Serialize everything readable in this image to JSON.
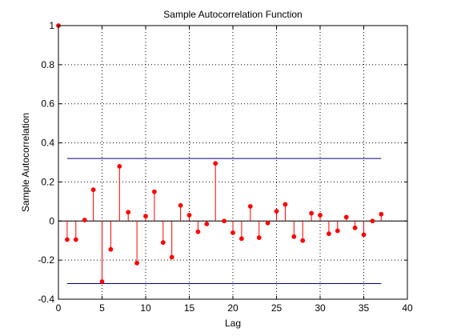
{
  "chart_data": {
    "type": "stem",
    "title": "Sample Autocorrelation Function",
    "xlabel": "Lag",
    "ylabel": "Sample Autocorrelation",
    "xlim": [
      0,
      40
    ],
    "ylim": [
      -0.4,
      1
    ],
    "xticks": [
      "0",
      "5",
      "10",
      "15",
      "20",
      "25",
      "30",
      "35",
      "40"
    ],
    "yticks": [
      "-0.4",
      "-0.2",
      "0",
      "0.2",
      "0.4",
      "0.6",
      "0.8",
      "1"
    ],
    "grid": true,
    "stem_color": "#ff0000",
    "bound_color": "#00007f",
    "series": [
      {
        "lags": [
          0,
          1,
          2,
          3,
          4,
          5,
          6,
          7,
          8,
          9,
          10,
          11,
          12,
          13,
          14,
          15,
          16,
          17,
          18,
          19,
          20,
          21,
          22,
          23,
          24,
          25,
          26,
          27,
          28,
          29,
          30,
          31,
          32,
          33,
          34,
          35,
          36,
          37
        ],
        "values": [
          1.0,
          -0.095,
          -0.095,
          0.005,
          0.16,
          -0.31,
          -0.145,
          0.28,
          0.045,
          -0.215,
          0.025,
          0.15,
          -0.11,
          -0.185,
          0.08,
          0.03,
          -0.055,
          -0.015,
          0.295,
          0.0,
          -0.06,
          -0.09,
          0.075,
          -0.085,
          -0.01,
          0.05,
          0.085,
          -0.08,
          -0.1,
          0.04,
          0.03,
          -0.065,
          -0.05,
          0.02,
          -0.035,
          -0.07,
          0.0,
          0.035
        ]
      }
    ],
    "confidence_bounds": {
      "upper": 0.32,
      "lower": -0.32,
      "x_range": [
        1,
        37
      ]
    }
  }
}
